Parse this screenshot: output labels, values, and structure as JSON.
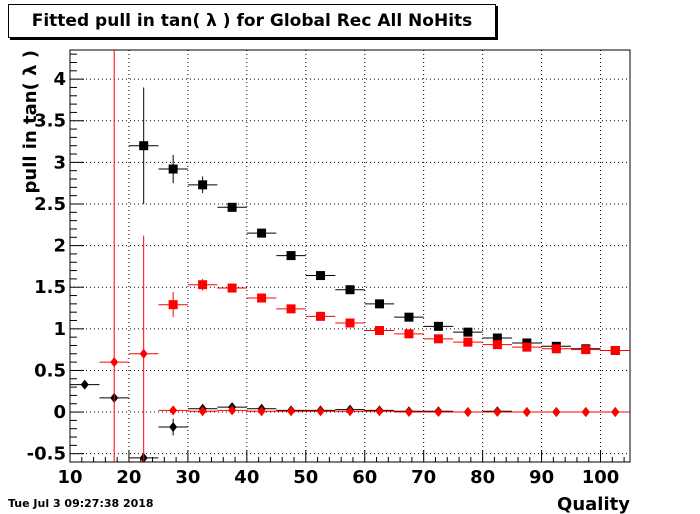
{
  "title": "Fitted pull in tan( λ ) for Global Rec All NoHits",
  "timestamp": "Tue Jul  3 09:27:38 2018",
  "chart_data": {
    "type": "scatter",
    "title": "Fitted pull in tan( λ ) for Global Rec All NoHits",
    "xlabel": "Quality",
    "ylabel": "pull in tan( λ )",
    "xlim": [
      10,
      105
    ],
    "ylim": [
      -0.6,
      4.35
    ],
    "xticks": [
      "10",
      "20",
      "30",
      "40",
      "50",
      "60",
      "70",
      "80",
      "90",
      "100"
    ],
    "yticks": [
      "-0.5",
      "0",
      "0.5",
      "1",
      "1.5",
      "2",
      "2.5",
      "3",
      "3.5",
      "4"
    ],
    "grid": true,
    "series": [
      {
        "marker": "square",
        "color": "#000000",
        "points": [
          {
            "x": 22.5,
            "y": 3.2,
            "ey": 0.7
          },
          {
            "x": 27.5,
            "y": 2.92,
            "ey": 0.17
          },
          {
            "x": 32.5,
            "y": 2.73,
            "ey": 0.1
          },
          {
            "x": 37.5,
            "y": 2.46,
            "ey": 0.05
          },
          {
            "x": 42.5,
            "y": 2.15,
            "ey": 0.03
          },
          {
            "x": 47.5,
            "y": 1.88,
            "ey": 0.02
          },
          {
            "x": 52.5,
            "y": 1.64,
            "ey": 0.02
          },
          {
            "x": 57.5,
            "y": 1.47,
            "ey": 0.02
          },
          {
            "x": 62.5,
            "y": 1.3,
            "ey": 0.02
          },
          {
            "x": 67.5,
            "y": 1.14,
            "ey": 0.01
          },
          {
            "x": 72.5,
            "y": 1.03,
            "ey": 0.01
          },
          {
            "x": 77.5,
            "y": 0.96,
            "ey": 0.01
          },
          {
            "x": 82.5,
            "y": 0.89,
            "ey": 0.01
          },
          {
            "x": 87.5,
            "y": 0.83,
            "ey": 0.01
          },
          {
            "x": 92.5,
            "y": 0.79,
            "ey": 0.01
          },
          {
            "x": 97.5,
            "y": 0.76,
            "ey": 0.01
          },
          {
            "x": 102.5,
            "y": 0.74,
            "ey": 0.01
          }
        ]
      },
      {
        "marker": "square",
        "color": "#ff0000",
        "points": [
          {
            "x": 27.5,
            "y": 1.29,
            "ey": 0.15
          },
          {
            "x": 32.5,
            "y": 1.53,
            "ey": 0.07
          },
          {
            "x": 37.5,
            "y": 1.49,
            "ey": 0.04
          },
          {
            "x": 42.5,
            "y": 1.37,
            "ey": 0.03
          },
          {
            "x": 47.5,
            "y": 1.24,
            "ey": 0.02
          },
          {
            "x": 52.5,
            "y": 1.15,
            "ey": 0.02
          },
          {
            "x": 57.5,
            "y": 1.07,
            "ey": 0.01
          },
          {
            "x": 62.5,
            "y": 0.98,
            "ey": 0.01
          },
          {
            "x": 67.5,
            "y": 0.94,
            "ey": 0.01
          },
          {
            "x": 72.5,
            "y": 0.88,
            "ey": 0.01
          },
          {
            "x": 77.5,
            "y": 0.84,
            "ey": 0.01
          },
          {
            "x": 82.5,
            "y": 0.81,
            "ey": 0.01
          },
          {
            "x": 87.5,
            "y": 0.78,
            "ey": 0.01
          },
          {
            "x": 92.5,
            "y": 0.76,
            "ey": 0.01
          },
          {
            "x": 97.5,
            "y": 0.75,
            "ey": 0.01
          },
          {
            "x": 102.5,
            "y": 0.74,
            "ey": 0.01
          }
        ]
      },
      {
        "marker": "diamond",
        "color": "#000000",
        "points": [
          {
            "x": 12.5,
            "y": 0.33,
            "ey": 0
          },
          {
            "x": 17.5,
            "y": 0.17,
            "ey": 0
          },
          {
            "x": 22.5,
            "y": -0.55,
            "ey": 0
          },
          {
            "x": 27.5,
            "y": -0.18,
            "ey": 0.1
          },
          {
            "x": 32.5,
            "y": 0.04,
            "ey": 0.04
          },
          {
            "x": 37.5,
            "y": 0.06,
            "ey": 0.02
          },
          {
            "x": 42.5,
            "y": 0.04,
            "ey": 0.02
          },
          {
            "x": 47.5,
            "y": 0.02,
            "ey": 0.01
          },
          {
            "x": 52.5,
            "y": 0.02,
            "ey": 0.01
          },
          {
            "x": 57.5,
            "y": 0.03,
            "ey": 0.01
          },
          {
            "x": 62.5,
            "y": 0.02,
            "ey": 0.01
          },
          {
            "x": 67.5,
            "y": 0.01,
            "ey": 0.01
          },
          {
            "x": 72.5,
            "y": 0.01,
            "ey": 0.01
          },
          {
            "x": 77.5,
            "y": 0.0,
            "ey": 0.01
          },
          {
            "x": 82.5,
            "y": 0.01,
            "ey": 0.01
          },
          {
            "x": 87.5,
            "y": 0.0,
            "ey": 0.01
          },
          {
            "x": 92.5,
            "y": 0.0,
            "ey": 0.01
          },
          {
            "x": 97.5,
            "y": 0.0,
            "ey": 0.01
          },
          {
            "x": 102.5,
            "y": 0.0,
            "ey": 0.01
          }
        ]
      },
      {
        "marker": "diamond",
        "color": "#ff0000",
        "points": [
          {
            "x": 17.5,
            "y": 0.6,
            "ey": 4.5
          },
          {
            "x": 22.5,
            "y": 0.7,
            "ey": 1.42
          },
          {
            "x": 27.5,
            "y": 0.02,
            "ey": 0.05
          },
          {
            "x": 32.5,
            "y": 0.01,
            "ey": 0.03
          },
          {
            "x": 37.5,
            "y": 0.02,
            "ey": 0.02
          },
          {
            "x": 42.5,
            "y": 0.01,
            "ey": 0.01
          },
          {
            "x": 47.5,
            "y": 0.01,
            "ey": 0.01
          },
          {
            "x": 52.5,
            "y": 0.01,
            "ey": 0.01
          },
          {
            "x": 57.5,
            "y": 0.01,
            "ey": 0.01
          },
          {
            "x": 62.5,
            "y": 0.01,
            "ey": 0.01
          },
          {
            "x": 67.5,
            "y": 0.0,
            "ey": 0.01
          },
          {
            "x": 72.5,
            "y": 0.0,
            "ey": 0.01
          },
          {
            "x": 77.5,
            "y": 0.0,
            "ey": 0.01
          },
          {
            "x": 82.5,
            "y": 0.0,
            "ey": 0.01
          },
          {
            "x": 87.5,
            "y": 0.0,
            "ey": 0.01
          },
          {
            "x": 92.5,
            "y": 0.0,
            "ey": 0.01
          },
          {
            "x": 97.5,
            "y": 0.0,
            "ey": 0.01
          },
          {
            "x": 102.5,
            "y": 0.0,
            "ey": 0.01
          }
        ]
      }
    ]
  }
}
